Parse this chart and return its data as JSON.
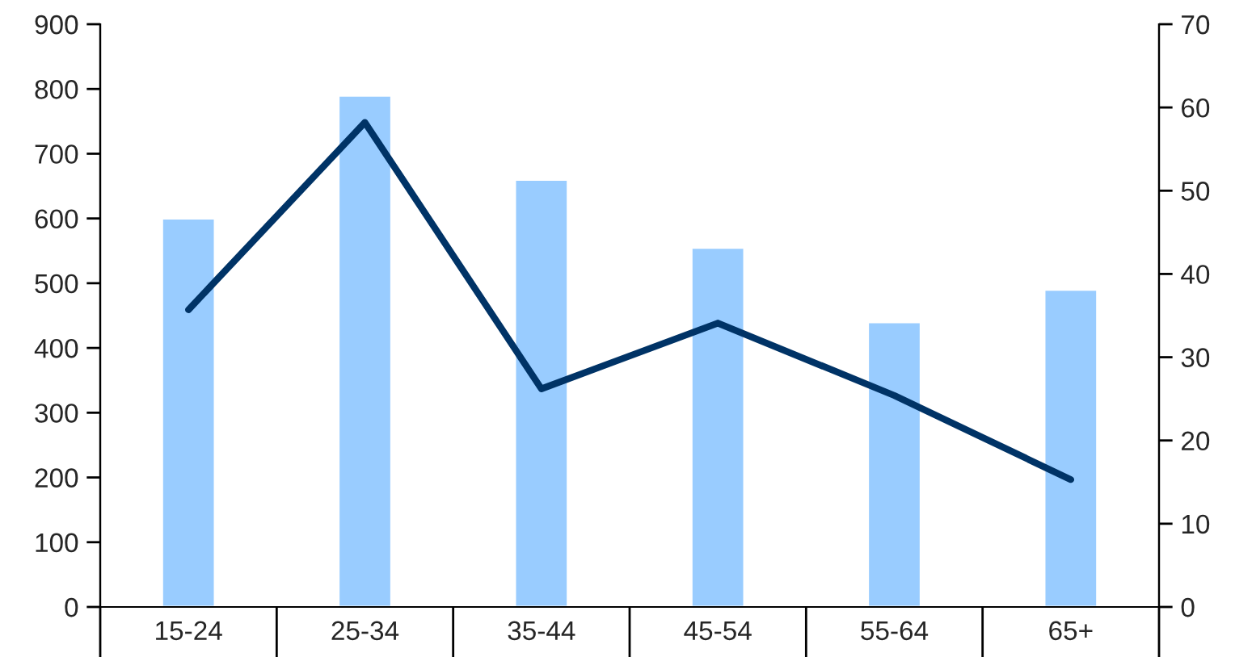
{
  "chart_data": {
    "type": "bar",
    "categories": [
      "15-24",
      "25-34",
      "35-44",
      "45-54",
      "55-64",
      "65+"
    ],
    "series": [
      {
        "color": "#99ccff",
        "values": [
          600,
          790,
          660,
          555,
          440,
          490
        ]
      },
      {
        "type": "line",
        "axis": "y2",
        "color": "#003366",
        "values": [
          35.7,
          58.2,
          26.2,
          34.1,
          25.4,
          15.3
        ]
      }
    ],
    "ylim": [
      0,
      900
    ],
    "yticks": [
      0,
      100,
      200,
      300,
      400,
      500,
      600,
      700,
      800,
      900
    ],
    "y2lim": [
      0,
      70
    ],
    "y2ticks": [
      0,
      10,
      20,
      30,
      40,
      50,
      60,
      70
    ],
    "grid": false,
    "legend": false,
    "marker": "none",
    "line_style": "solid"
  }
}
